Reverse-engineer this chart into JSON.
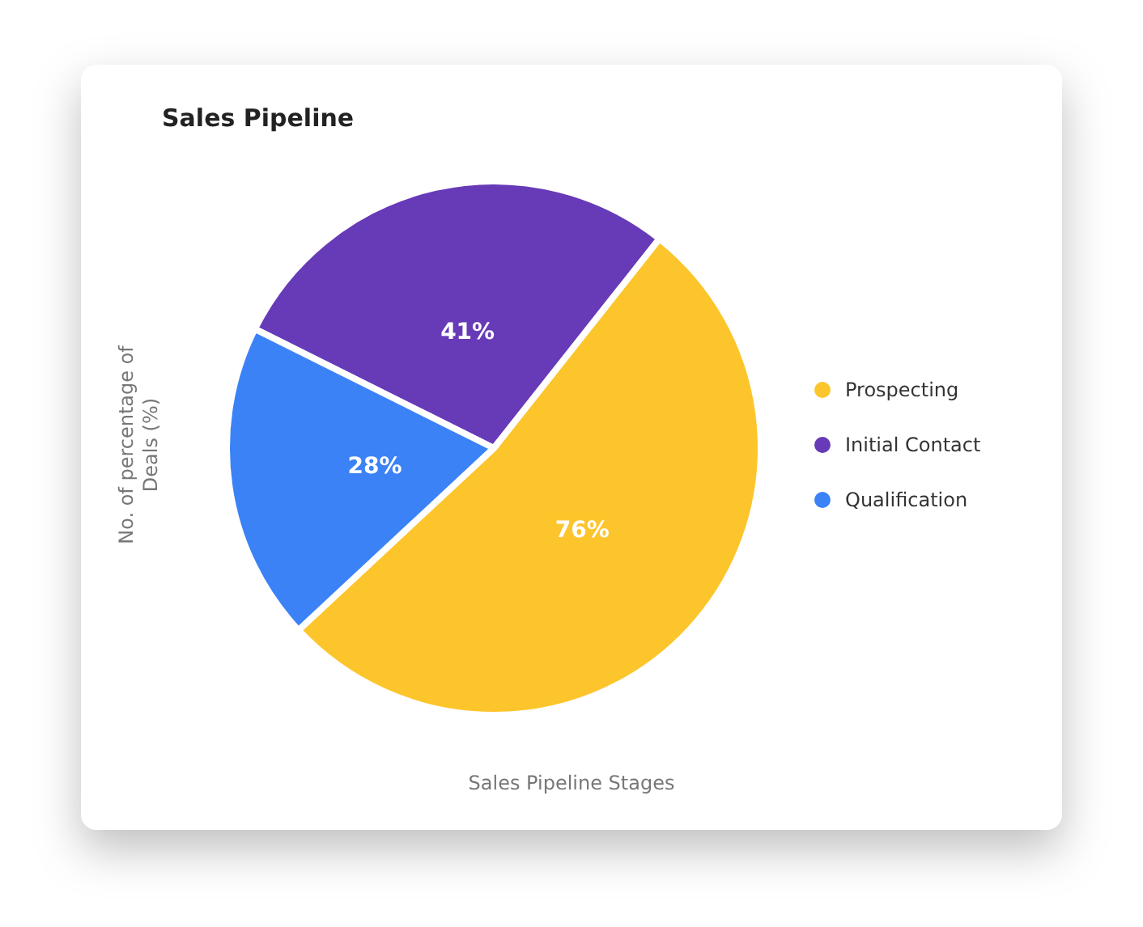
{
  "chart_data": {
    "type": "pie",
    "title": "Sales Pipeline",
    "xlabel": "Sales Pipeline Stages",
    "ylabel": "No. of percentage of Deals (%)",
    "categories": [
      "Prospecting",
      "Initial Contact",
      "Qualification"
    ],
    "values": [
      76,
      41,
      28
    ],
    "value_labels": [
      "76%",
      "41%",
      "28%"
    ],
    "colors": [
      "#fdc52c",
      "#673ab7",
      "#3b82f6"
    ],
    "legend": "right"
  }
}
